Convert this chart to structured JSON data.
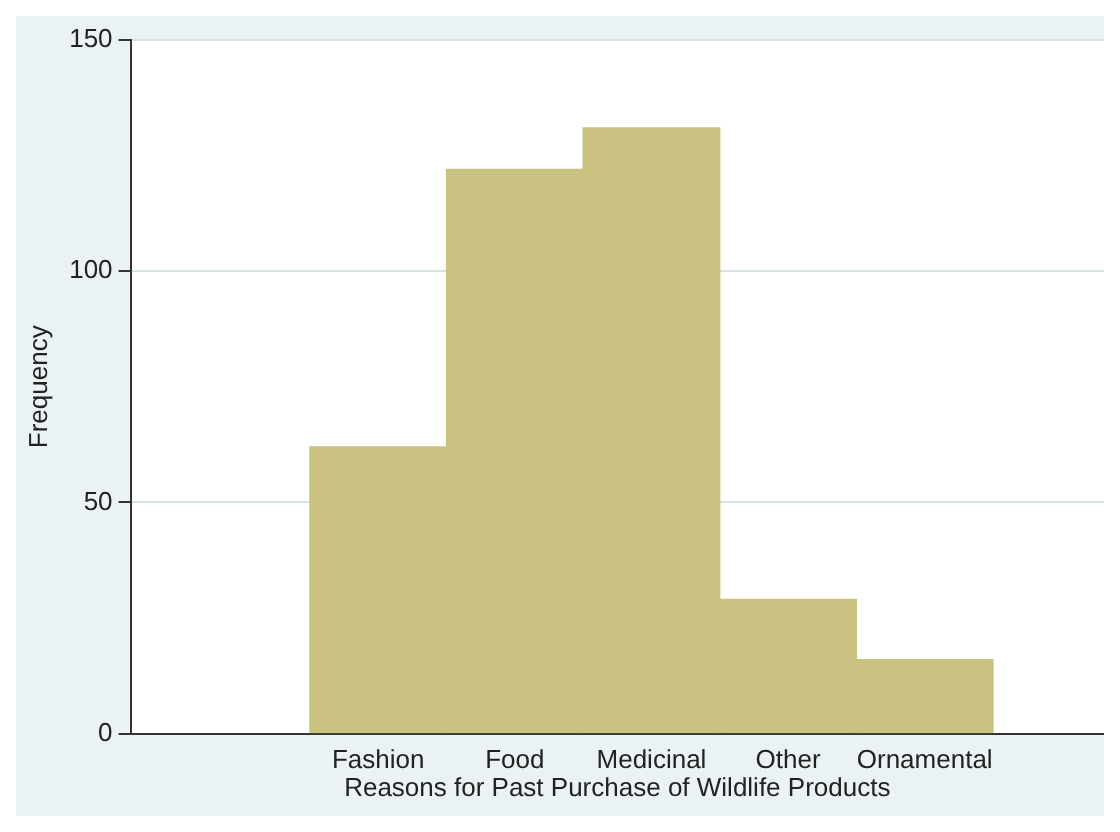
{
  "chart_data": {
    "type": "bar",
    "xlabel": "Reasons for Past Purchase of Wildlife Products",
    "ylabel": "Frequency",
    "categories": [
      "Fashion",
      "Food",
      "Medicinal",
      "Other",
      "Ornamental"
    ],
    "values": [
      62,
      122,
      131,
      29,
      16
    ],
    "color": "#c9c280",
    "ylim": [
      0,
      150
    ],
    "yticks": [
      0,
      50,
      100,
      150
    ],
    "grid": "y",
    "legend": false
  }
}
